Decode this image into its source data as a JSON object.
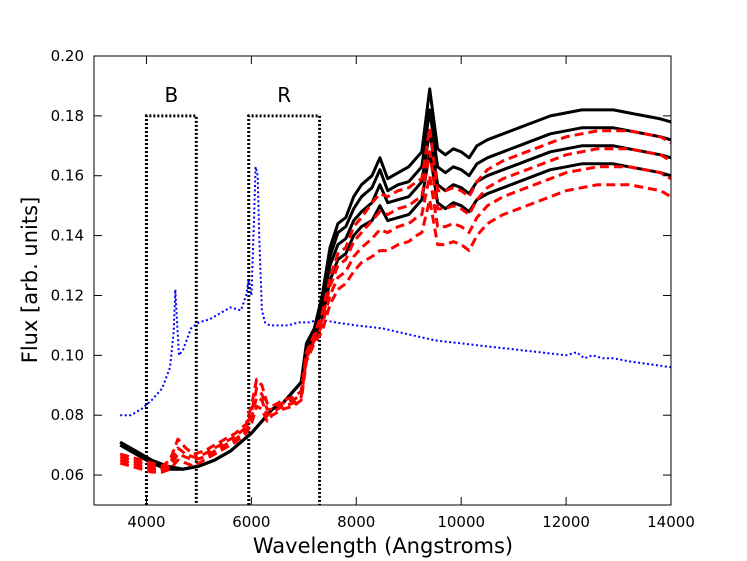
{
  "chart_data": {
    "type": "line",
    "title": "",
    "xlabel": "Wavelength  (Angstroms)",
    "ylabel": "Flux   [arb. units]",
    "xlim": [
      3000,
      14000
    ],
    "ylim": [
      0.05,
      0.2
    ],
    "xticks": [
      4000,
      6000,
      8000,
      10000,
      12000,
      14000
    ],
    "yticks": [
      0.06,
      0.08,
      0.1,
      0.12,
      0.14,
      0.16,
      0.18,
      0.2
    ],
    "ytick_labels": [
      "0.06",
      "0.08",
      "0.10",
      "0.12",
      "0.14",
      "0.16",
      "0.18",
      "0.20"
    ],
    "grid": false,
    "bands": [
      {
        "label": "B",
        "x_start": 4000,
        "x_end": 4950,
        "top": 0.18,
        "color": "#000000",
        "style": "dotted"
      },
      {
        "label": "R",
        "x_start": 5950,
        "x_end": 7300,
        "top": 0.18,
        "color": "#000000",
        "style": "dotted"
      }
    ],
    "series": [
      {
        "style": "dotted",
        "color": "#0000ff",
        "x": [
          3500,
          3700,
          3900,
          4100,
          4300,
          4450,
          4520,
          4550,
          4580,
          4620,
          4700,
          4850,
          5000,
          5200,
          5400,
          5600,
          5800,
          5900,
          5950,
          6000,
          6050,
          6080,
          6120,
          6150,
          6200,
          6260,
          6350,
          6500,
          6700,
          6900,
          7100,
          7300,
          7600,
          8000,
          8500,
          9000,
          9500,
          10000,
          10500,
          11000,
          11500,
          12000,
          12200,
          12350,
          12500,
          12700,
          12900,
          13200,
          13600,
          14000
        ],
        "y": [
          0.08,
          0.08,
          0.082,
          0.085,
          0.089,
          0.096,
          0.108,
          0.122,
          0.112,
          0.1,
          0.102,
          0.109,
          0.111,
          0.112,
          0.114,
          0.116,
          0.115,
          0.12,
          0.125,
          0.12,
          0.145,
          0.163,
          0.16,
          0.14,
          0.115,
          0.111,
          0.11,
          0.11,
          0.11,
          0.111,
          0.111,
          0.112,
          0.111,
          0.11,
          0.109,
          0.107,
          0.105,
          0.104,
          0.103,
          0.102,
          0.101,
          0.1,
          0.101,
          0.099,
          0.1,
          0.099,
          0.099,
          0.098,
          0.097,
          0.096
        ]
      },
      {
        "style": "solid",
        "color": "#000000",
        "x": [
          3500,
          3800,
          4100,
          4400,
          4700,
          5000,
          5300,
          5600,
          5800,
          6000,
          6200,
          6400,
          6600,
          6700,
          6800,
          6950,
          7050,
          7200,
          7350,
          7500,
          7650,
          7800,
          7950,
          8100,
          8300,
          8450,
          8600,
          8800,
          9000,
          9150,
          9250,
          9400,
          9550,
          9700,
          9850,
          10000,
          10150,
          10300,
          10500,
          10800,
          11100,
          11400,
          11700,
          12000,
          12300,
          12600,
          12900,
          13200,
          13500,
          13800,
          14000
        ],
        "y": [
          0.07,
          0.067,
          0.064,
          0.062,
          0.062,
          0.063,
          0.065,
          0.068,
          0.071,
          0.074,
          0.078,
          0.082,
          0.084,
          0.086,
          0.088,
          0.091,
          0.1,
          0.105,
          0.112,
          0.125,
          0.132,
          0.134,
          0.14,
          0.143,
          0.145,
          0.15,
          0.145,
          0.146,
          0.147,
          0.15,
          0.152,
          0.168,
          0.151,
          0.149,
          0.151,
          0.15,
          0.148,
          0.152,
          0.154,
          0.156,
          0.158,
          0.16,
          0.162,
          0.163,
          0.164,
          0.164,
          0.164,
          0.163,
          0.162,
          0.161,
          0.16
        ]
      },
      {
        "style": "solid",
        "color": "#000000",
        "x": [
          3500,
          3800,
          4100,
          4400,
          4700,
          5000,
          5300,
          5600,
          5800,
          6000,
          6200,
          6400,
          6600,
          6700,
          6800,
          6950,
          7050,
          7200,
          7350,
          7500,
          7650,
          7800,
          7950,
          8100,
          8300,
          8450,
          8600,
          8800,
          9000,
          9150,
          9250,
          9400,
          9550,
          9700,
          9850,
          10000,
          10150,
          10300,
          10500,
          10800,
          11100,
          11400,
          11700,
          12000,
          12300,
          12600,
          12900,
          13200,
          13500,
          13800,
          14000
        ],
        "y": [
          0.07,
          0.067,
          0.064,
          0.062,
          0.062,
          0.063,
          0.065,
          0.068,
          0.071,
          0.074,
          0.078,
          0.082,
          0.084,
          0.086,
          0.088,
          0.091,
          0.102,
          0.107,
          0.116,
          0.13,
          0.137,
          0.139,
          0.145,
          0.148,
          0.151,
          0.157,
          0.151,
          0.152,
          0.153,
          0.156,
          0.158,
          0.175,
          0.157,
          0.155,
          0.157,
          0.156,
          0.154,
          0.158,
          0.16,
          0.162,
          0.164,
          0.166,
          0.168,
          0.169,
          0.17,
          0.17,
          0.17,
          0.169,
          0.168,
          0.167,
          0.166
        ]
      },
      {
        "style": "solid",
        "color": "#000000",
        "x": [
          3500,
          3800,
          4100,
          4400,
          4700,
          5000,
          5300,
          5600,
          5800,
          6000,
          6200,
          6400,
          6600,
          6700,
          6800,
          6950,
          7050,
          7200,
          7350,
          7500,
          7650,
          7800,
          7950,
          8100,
          8300,
          8450,
          8600,
          8800,
          9000,
          9150,
          9250,
          9400,
          9550,
          9700,
          9850,
          10000,
          10150,
          10300,
          10500,
          10800,
          11100,
          11400,
          11700,
          12000,
          12300,
          12600,
          12900,
          13200,
          13500,
          13800,
          14000
        ],
        "y": [
          0.071,
          0.067,
          0.064,
          0.062,
          0.062,
          0.063,
          0.065,
          0.068,
          0.071,
          0.074,
          0.078,
          0.082,
          0.084,
          0.086,
          0.088,
          0.091,
          0.103,
          0.108,
          0.118,
          0.133,
          0.141,
          0.143,
          0.149,
          0.153,
          0.156,
          0.162,
          0.155,
          0.157,
          0.158,
          0.161,
          0.163,
          0.182,
          0.163,
          0.161,
          0.163,
          0.162,
          0.16,
          0.164,
          0.166,
          0.168,
          0.17,
          0.172,
          0.174,
          0.175,
          0.176,
          0.176,
          0.176,
          0.175,
          0.174,
          0.173,
          0.172
        ]
      },
      {
        "style": "solid",
        "color": "#000000",
        "x": [
          3500,
          3800,
          4100,
          4400,
          4700,
          5000,
          5300,
          5600,
          5800,
          6000,
          6200,
          6400,
          6600,
          6700,
          6800,
          6950,
          7050,
          7200,
          7350,
          7500,
          7650,
          7800,
          7950,
          8100,
          8300,
          8450,
          8600,
          8800,
          9000,
          9150,
          9250,
          9400,
          9550,
          9700,
          9850,
          10000,
          10150,
          10300,
          10500,
          10800,
          11100,
          11400,
          11700,
          12000,
          12300,
          12600,
          12900,
          13200,
          13500,
          13800,
          14000
        ],
        "y": [
          0.071,
          0.068,
          0.065,
          0.063,
          0.062,
          0.063,
          0.065,
          0.068,
          0.071,
          0.074,
          0.078,
          0.082,
          0.084,
          0.086,
          0.088,
          0.091,
          0.104,
          0.109,
          0.12,
          0.136,
          0.144,
          0.146,
          0.153,
          0.157,
          0.16,
          0.166,
          0.159,
          0.161,
          0.163,
          0.166,
          0.168,
          0.189,
          0.169,
          0.167,
          0.169,
          0.168,
          0.166,
          0.17,
          0.172,
          0.174,
          0.176,
          0.178,
          0.18,
          0.181,
          0.182,
          0.182,
          0.182,
          0.181,
          0.18,
          0.179,
          0.178
        ]
      },
      {
        "style": "dashed",
        "color": "#ff0000",
        "x": [
          3500,
          3700,
          3900,
          4100,
          4300,
          4450,
          4600,
          4750,
          4900,
          5100,
          5300,
          5500,
          5700,
          5900,
          6000,
          6100,
          6200,
          6300,
          6400,
          6600,
          6800,
          6950,
          7050,
          7200,
          7350,
          7500,
          7650,
          7800,
          7950,
          8100,
          8300,
          8450,
          8600,
          8800,
          9000,
          9150,
          9250,
          9400,
          9550,
          9700,
          9850,
          10000,
          10150,
          10300,
          10500,
          10800,
          11100,
          11400,
          11700,
          12000,
          12300,
          12600,
          12900,
          13200,
          13500,
          13800,
          14000
        ],
        "y": [
          0.064,
          0.063,
          0.062,
          0.061,
          0.061,
          0.062,
          0.065,
          0.064,
          0.063,
          0.065,
          0.067,
          0.069,
          0.071,
          0.074,
          0.077,
          0.083,
          0.082,
          0.078,
          0.08,
          0.082,
          0.083,
          0.085,
          0.098,
          0.104,
          0.108,
          0.117,
          0.122,
          0.124,
          0.128,
          0.131,
          0.133,
          0.135,
          0.135,
          0.137,
          0.138,
          0.14,
          0.141,
          0.152,
          0.137,
          0.137,
          0.138,
          0.137,
          0.135,
          0.14,
          0.144,
          0.147,
          0.149,
          0.151,
          0.153,
          0.155,
          0.156,
          0.157,
          0.157,
          0.157,
          0.156,
          0.155,
          0.153
        ]
      },
      {
        "style": "dashed",
        "color": "#ff0000",
        "x": [
          3500,
          3700,
          3900,
          4100,
          4300,
          4450,
          4600,
          4750,
          4900,
          5100,
          5300,
          5500,
          5700,
          5900,
          6000,
          6100,
          6200,
          6300,
          6400,
          6600,
          6800,
          6950,
          7050,
          7200,
          7350,
          7500,
          7650,
          7800,
          7950,
          8100,
          8300,
          8450,
          8600,
          8800,
          9000,
          9150,
          9250,
          9400,
          9550,
          9700,
          9850,
          10000,
          10150,
          10300,
          10500,
          10800,
          11100,
          11400,
          11700,
          12000,
          12300,
          12600,
          12900,
          13200,
          13500,
          13800,
          14000
        ],
        "y": [
          0.065,
          0.064,
          0.063,
          0.062,
          0.062,
          0.063,
          0.067,
          0.066,
          0.065,
          0.066,
          0.068,
          0.07,
          0.072,
          0.075,
          0.079,
          0.086,
          0.085,
          0.08,
          0.081,
          0.083,
          0.084,
          0.086,
          0.099,
          0.105,
          0.11,
          0.12,
          0.126,
          0.128,
          0.133,
          0.136,
          0.139,
          0.142,
          0.141,
          0.143,
          0.144,
          0.146,
          0.147,
          0.16,
          0.143,
          0.143,
          0.144,
          0.143,
          0.141,
          0.146,
          0.15,
          0.153,
          0.155,
          0.157,
          0.159,
          0.161,
          0.162,
          0.163,
          0.163,
          0.163,
          0.162,
          0.161,
          0.159
        ]
      },
      {
        "style": "dashed",
        "color": "#ff0000",
        "x": [
          3500,
          3700,
          3900,
          4100,
          4300,
          4450,
          4600,
          4750,
          4900,
          5100,
          5300,
          5500,
          5700,
          5900,
          6000,
          6100,
          6200,
          6300,
          6400,
          6600,
          6800,
          6950,
          7050,
          7200,
          7350,
          7500,
          7650,
          7800,
          7950,
          8100,
          8300,
          8450,
          8600,
          8800,
          9000,
          9150,
          9250,
          9400,
          9550,
          9700,
          9850,
          10000,
          10150,
          10300,
          10500,
          10800,
          11100,
          11400,
          11700,
          12000,
          12300,
          12600,
          12900,
          13200,
          13500,
          13800,
          14000
        ],
        "y": [
          0.066,
          0.065,
          0.064,
          0.063,
          0.062,
          0.064,
          0.069,
          0.067,
          0.066,
          0.067,
          0.069,
          0.071,
          0.073,
          0.076,
          0.081,
          0.089,
          0.087,
          0.082,
          0.082,
          0.084,
          0.085,
          0.087,
          0.1,
          0.106,
          0.112,
          0.123,
          0.13,
          0.132,
          0.138,
          0.141,
          0.145,
          0.148,
          0.147,
          0.149,
          0.15,
          0.152,
          0.153,
          0.168,
          0.149,
          0.149,
          0.15,
          0.149,
          0.147,
          0.152,
          0.156,
          0.159,
          0.161,
          0.163,
          0.165,
          0.167,
          0.168,
          0.169,
          0.169,
          0.169,
          0.168,
          0.167,
          0.165
        ]
      },
      {
        "style": "dashed",
        "color": "#ff0000",
        "x": [
          3500,
          3700,
          3900,
          4100,
          4300,
          4450,
          4600,
          4750,
          4900,
          5100,
          5300,
          5500,
          5700,
          5900,
          6000,
          6100,
          6200,
          6300,
          6400,
          6600,
          6800,
          6950,
          7050,
          7200,
          7350,
          7500,
          7650,
          7800,
          7950,
          8100,
          8300,
          8450,
          8600,
          8800,
          9000,
          9150,
          9250,
          9400,
          9550,
          9700,
          9850,
          10000,
          10150,
          10300,
          10500,
          10800,
          11100,
          11400,
          11700,
          12000,
          12300,
          12600,
          12900,
          13200,
          13500,
          13800,
          14000
        ],
        "y": [
          0.067,
          0.066,
          0.065,
          0.064,
          0.063,
          0.065,
          0.072,
          0.069,
          0.067,
          0.068,
          0.07,
          0.072,
          0.074,
          0.077,
          0.083,
          0.092,
          0.09,
          0.084,
          0.083,
          0.085,
          0.086,
          0.088,
          0.101,
          0.107,
          0.114,
          0.126,
          0.134,
          0.136,
          0.143,
          0.146,
          0.151,
          0.154,
          0.153,
          0.155,
          0.156,
          0.158,
          0.159,
          0.176,
          0.155,
          0.155,
          0.156,
          0.155,
          0.153,
          0.158,
          0.162,
          0.165,
          0.167,
          0.169,
          0.171,
          0.173,
          0.174,
          0.175,
          0.175,
          0.175,
          0.174,
          0.173,
          0.171
        ]
      }
    ]
  }
}
